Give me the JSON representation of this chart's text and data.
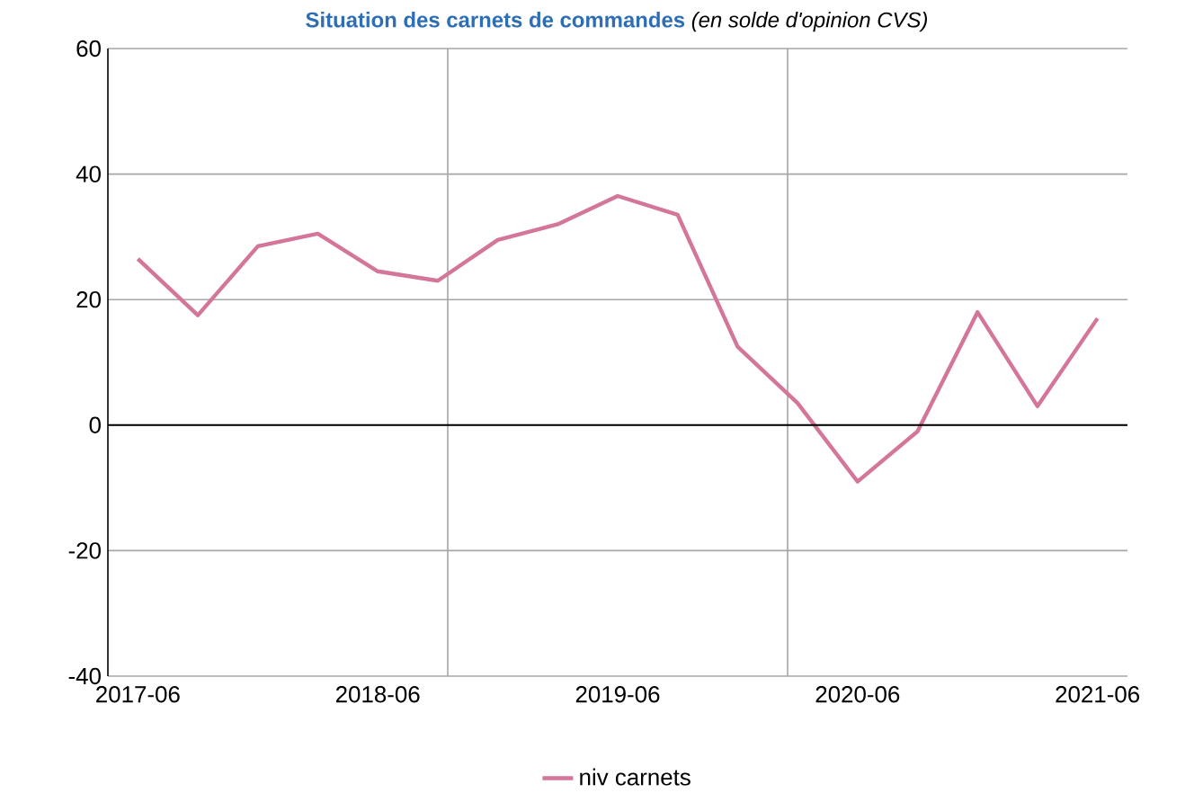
{
  "chart_data": {
    "type": "line",
    "title": "Situation des carnets de commandes",
    "subtitle": "(en solde d'opinion CVS)",
    "x": [
      "2017-06",
      "2017-09",
      "2017-12",
      "2018-03",
      "2018-06",
      "2018-09",
      "2018-12",
      "2019-03",
      "2019-06",
      "2019-09",
      "2019-12",
      "2020-03",
      "2020-06",
      "2020-09",
      "2020-12",
      "2021-03",
      "2021-06"
    ],
    "series": [
      {
        "name": "niv carnets",
        "color": "#d4759a",
        "values": [
          26.5,
          17.5,
          28.5,
          30.5,
          24.5,
          23,
          29.5,
          32,
          36.5,
          33.5,
          12.5,
          3.5,
          -9,
          -1,
          18,
          3,
          17
        ]
      }
    ],
    "xlim": [
      "2017-04-16",
      "2021-07-16"
    ],
    "xticks": [
      {
        "value": "2017-06",
        "label": "2017-06"
      },
      {
        "value": "2018-06",
        "label": "2018-06"
      },
      {
        "value": "2019-06",
        "label": "2019-06"
      },
      {
        "value": "2020-06",
        "label": "2020-06"
      },
      {
        "value": "2021-06",
        "label": "2021-06"
      },
      {
        "value": "2018-09-16",
        "label": null
      },
      {
        "value": "2020-02-16",
        "label": null
      }
    ],
    "ylim": [
      -40,
      60
    ],
    "yticks": [
      -40,
      -20,
      0,
      20,
      40,
      60
    ],
    "ref_lines": [
      {
        "axis": "y",
        "value": 0,
        "color": "#000000"
      }
    ],
    "grid": true,
    "legend": "bottom",
    "marker": "none",
    "line_style": "solid"
  }
}
